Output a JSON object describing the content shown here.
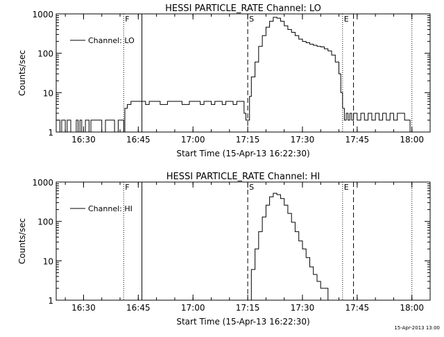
{
  "footer_stamp": "15-Apr-2013 13:00",
  "chart_data": [
    {
      "type": "line",
      "title": "HESSI PARTICLE_RATE Channel: LO",
      "xlabel": "Start Time (15-Apr-13 16:22:30)",
      "ylabel": "Counts/sec",
      "yscale": "log",
      "ylim": [
        1,
        1000
      ],
      "xlim": [
        "16:22:30",
        "18:05:00"
      ],
      "xticks": [
        "16:30",
        "16:45",
        "17:00",
        "17:15",
        "17:30",
        "17:45",
        "18:00"
      ],
      "yticks": [
        "1",
        "10",
        "100",
        "1000"
      ],
      "legend": "Channel: LO",
      "legend_position": "top-left",
      "markers": [
        {
          "label": "F",
          "time": "16:41:00",
          "style": "dotted"
        },
        {
          "label": "",
          "time": "16:46:00",
          "style": "solid"
        },
        {
          "label": "S",
          "time": "17:15:00",
          "style": "dashed"
        },
        {
          "label": "E",
          "time": "17:41:00",
          "style": "dotted"
        },
        {
          "label": "",
          "time": "17:44:00",
          "style": "dashed"
        },
        {
          "label": "",
          "time": "18:00:00",
          "style": "dotted"
        }
      ],
      "series": [
        {
          "name": "Channel: LO",
          "x": [
            "16:22:30",
            "16:23:30",
            "16:24:00",
            "16:25:00",
            "16:25:30",
            "16:26:30",
            "16:28:00",
            "16:28:30",
            "16:29:00",
            "16:29:30",
            "16:30:30",
            "16:31:30",
            "16:32:00",
            "16:33:00",
            "16:34:30",
            "16:35:00",
            "16:36:00",
            "16:37:00",
            "16:38:00",
            "16:38:30",
            "16:39:30",
            "16:40:30",
            "16:41:00",
            "16:41:20",
            "16:42:00",
            "16:42:30",
            "16:43:00",
            "16:44:00",
            "16:45:00",
            "16:47:00",
            "16:48:00",
            "16:50:00",
            "16:51:00",
            "16:53:00",
            "16:54:00",
            "16:56:00",
            "16:57:00",
            "16:59:00",
            "17:00:00",
            "17:02:00",
            "17:03:00",
            "17:05:00",
            "17:06:00",
            "17:08:00",
            "17:09:00",
            "17:11:00",
            "17:12:00",
            "17:13:00",
            "17:14:00",
            "17:14:30",
            "17:15:00",
            "17:15:30",
            "17:16:00",
            "17:17:00",
            "17:18:00",
            "17:19:00",
            "17:20:00",
            "17:21:00",
            "17:22:00",
            "17:23:00",
            "17:24:00",
            "17:25:00",
            "17:26:00",
            "17:27:00",
            "17:28:00",
            "17:29:00",
            "17:30:00",
            "17:31:00",
            "17:32:00",
            "17:33:00",
            "17:34:00",
            "17:35:00",
            "17:36:00",
            "17:37:00",
            "17:38:00",
            "17:39:00",
            "17:40:00",
            "17:40:30",
            "17:41:00",
            "17:41:30",
            "17:42:00",
            "17:42:30",
            "17:43:00",
            "17:43:30",
            "17:44:00",
            "17:45:00",
            "17:46:00",
            "17:47:00",
            "17:48:00",
            "17:49:00",
            "17:50:00",
            "17:51:00",
            "17:52:00",
            "17:53:00",
            "17:54:00",
            "17:55:00",
            "17:56:00",
            "17:57:00",
            "17:58:00",
            "17:59:00",
            "17:59:30"
          ],
          "y": [
            2,
            1,
            2,
            1,
            2,
            1,
            2,
            1,
            2,
            1,
            2,
            1,
            2,
            2,
            2,
            1,
            2,
            2,
            2,
            1,
            2,
            2,
            1,
            4,
            5,
            5,
            6,
            6,
            6,
            5,
            6,
            6,
            5,
            6,
            6,
            6,
            5,
            6,
            6,
            5,
            6,
            5,
            6,
            5,
            6,
            5,
            6,
            6,
            3,
            2,
            2,
            8,
            25,
            60,
            150,
            280,
            460,
            650,
            820,
            780,
            650,
            500,
            400,
            340,
            280,
            230,
            200,
            185,
            170,
            160,
            150,
            145,
            130,
            115,
            90,
            60,
            30,
            10,
            4,
            2,
            3,
            2,
            3,
            2,
            3,
            2,
            3,
            2,
            3,
            2,
            3,
            2,
            3,
            2,
            3,
            2,
            3,
            3,
            2,
            2,
            1
          ]
        }
      ]
    },
    {
      "type": "line",
      "title": "HESSI PARTICLE_RATE Channel: HI",
      "xlabel": "Start Time (15-Apr-13 16:22:30)",
      "ylabel": "Counts/sec",
      "yscale": "log",
      "ylim": [
        1,
        1000
      ],
      "xlim": [
        "16:22:30",
        "18:05:00"
      ],
      "xticks": [
        "16:30",
        "16:45",
        "17:00",
        "17:15",
        "17:30",
        "17:45",
        "18:00"
      ],
      "yticks": [
        "1",
        "10",
        "100",
        "1000"
      ],
      "legend": "Channel: HI",
      "legend_position": "top-left",
      "markers": [
        {
          "label": "F",
          "time": "16:41:00",
          "style": "dotted"
        },
        {
          "label": "",
          "time": "16:46:00",
          "style": "solid"
        },
        {
          "label": "S",
          "time": "17:15:00",
          "style": "dashed"
        },
        {
          "label": "E",
          "time": "17:41:00",
          "style": "dotted"
        },
        {
          "label": "",
          "time": "17:44:00",
          "style": "dashed"
        },
        {
          "label": "",
          "time": "18:00:00",
          "style": "dotted"
        }
      ],
      "series": [
        {
          "name": "Channel: HI",
          "x": [
            "17:15:00",
            "17:16:00",
            "17:17:00",
            "17:18:00",
            "17:19:00",
            "17:20:00",
            "17:21:00",
            "17:22:00",
            "17:23:00",
            "17:24:00",
            "17:25:00",
            "17:26:00",
            "17:27:00",
            "17:28:00",
            "17:29:00",
            "17:30:00",
            "17:31:00",
            "17:32:00",
            "17:33:00",
            "17:34:00",
            "17:35:00",
            "17:36:00",
            "17:37:00",
            "17:37:30"
          ],
          "y": [
            1,
            6,
            20,
            55,
            130,
            260,
            420,
            520,
            480,
            380,
            260,
            160,
            95,
            55,
            32,
            20,
            12,
            7,
            4.5,
            3,
            2,
            2,
            1,
            1
          ]
        }
      ]
    }
  ]
}
